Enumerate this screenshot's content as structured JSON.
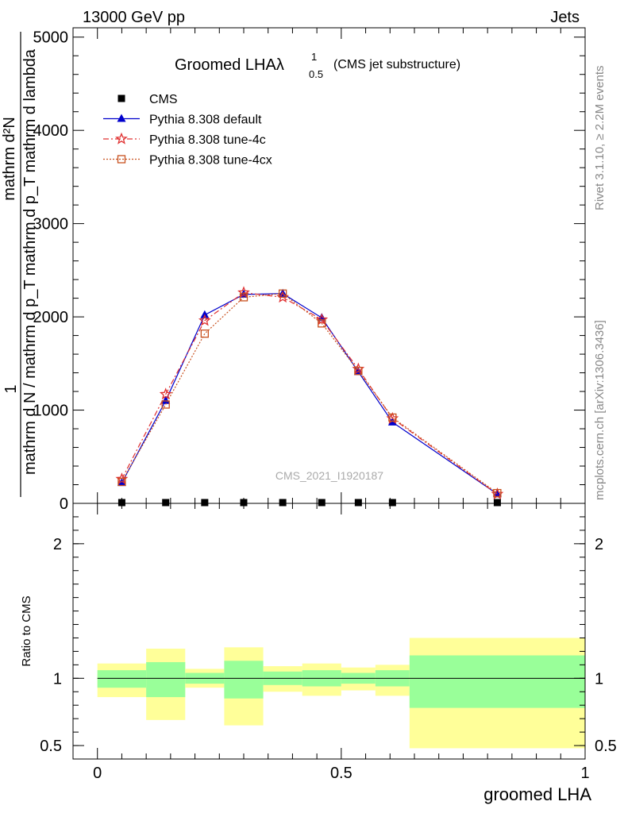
{
  "header": {
    "left": "13000 GeV pp",
    "right": "Jets"
  },
  "side_labels": {
    "rivet": "Rivet 3.1.10, ≥ 2.2M events",
    "mcplots": "mcplots.cern.ch [arXiv:1306.3436]"
  },
  "watermark": "CMS_2021_I1920187",
  "chart_data": [
    {
      "type": "line",
      "title_main": "Groomed LHA",
      "title_lambda": "λ",
      "title_sup": "1",
      "title_sub": "0.5",
      "title_paren": "(CMS jet substructure)",
      "ylabel_top": "1",
      "ylabel_num": "mathrm d²N",
      "ylabel_den": "mathrm d N / mathrm d p_T mathrm d p_T mathrm d lambda",
      "xlim": [
        -0.05,
        1.0
      ],
      "ylim": [
        0,
        5100
      ],
      "ytick_values": [
        0,
        1000,
        2000,
        3000,
        4000,
        5000
      ],
      "ytick_labels": [
        "0",
        "1000",
        "2000",
        "3000",
        "4000",
        "5000"
      ],
      "legend_position": "top-left",
      "x": [
        0.05,
        0.14,
        0.22,
        0.3,
        0.38,
        0.46,
        0.535,
        0.605,
        0.82
      ],
      "series": [
        {
          "name": "CMS",
          "color": "#000000",
          "marker": "square",
          "values": [
            0,
            0,
            0,
            0,
            0,
            0,
            0,
            0,
            0
          ]
        },
        {
          "name": "Pythia 8.308 default",
          "color": "#0000cc",
          "marker": "triangle",
          "values": [
            220,
            1100,
            2020,
            2240,
            2250,
            1990,
            1410,
            870,
            100
          ]
        },
        {
          "name": "Pythia 8.308 tune-4c",
          "color": "#e03030",
          "marker": "star",
          "values": [
            260,
            1170,
            1960,
            2260,
            2210,
            1970,
            1440,
            910,
            100
          ]
        },
        {
          "name": "Pythia 8.308 tune-4cx",
          "color": "#c8501e",
          "marker": "open-square",
          "values": [
            230,
            1060,
            1820,
            2210,
            2250,
            1930,
            1420,
            920,
            110
          ]
        }
      ]
    },
    {
      "type": "area",
      "ylabel": "Ratio to CMS",
      "xlabel": "groomed LHA",
      "xlim": [
        -0.05,
        1.0
      ],
      "ylim": [
        0.4,
        2.3
      ],
      "ytick_values": [
        0.5,
        1,
        2
      ],
      "ytick_labels": [
        "0.5",
        "1",
        "2"
      ],
      "xtick_values": [
        0,
        0.5,
        1
      ],
      "xtick_labels": [
        "0",
        "0.5",
        "1"
      ],
      "reference_line": 1,
      "band_colors": {
        "inner": "#99ff99",
        "outer": "#ffff99"
      },
      "bins": [
        {
          "x0": 0.0,
          "x1": 0.1,
          "inner": [
            0.93,
            1.06
          ],
          "outer": [
            0.86,
            1.11
          ]
        },
        {
          "x0": 0.1,
          "x1": 0.18,
          "inner": [
            0.86,
            1.12
          ],
          "outer": [
            0.69,
            1.22
          ]
        },
        {
          "x0": 0.18,
          "x1": 0.26,
          "inner": [
            0.96,
            1.04
          ],
          "outer": [
            0.93,
            1.07
          ]
        },
        {
          "x0": 0.26,
          "x1": 0.34,
          "inner": [
            0.85,
            1.13
          ],
          "outer": [
            0.65,
            1.23
          ]
        },
        {
          "x0": 0.34,
          "x1": 0.42,
          "inner": [
            0.95,
            1.05
          ],
          "outer": [
            0.9,
            1.09
          ]
        },
        {
          "x0": 0.42,
          "x1": 0.5,
          "inner": [
            0.94,
            1.06
          ],
          "outer": [
            0.87,
            1.11
          ]
        },
        {
          "x0": 0.5,
          "x1": 0.57,
          "inner": [
            0.96,
            1.04
          ],
          "outer": [
            0.91,
            1.08
          ]
        },
        {
          "x0": 0.57,
          "x1": 0.64,
          "inner": [
            0.94,
            1.06
          ],
          "outer": [
            0.87,
            1.1
          ]
        },
        {
          "x0": 0.64,
          "x1": 1.0,
          "inner": [
            0.78,
            1.17
          ],
          "outer": [
            0.48,
            1.3
          ]
        }
      ]
    }
  ]
}
